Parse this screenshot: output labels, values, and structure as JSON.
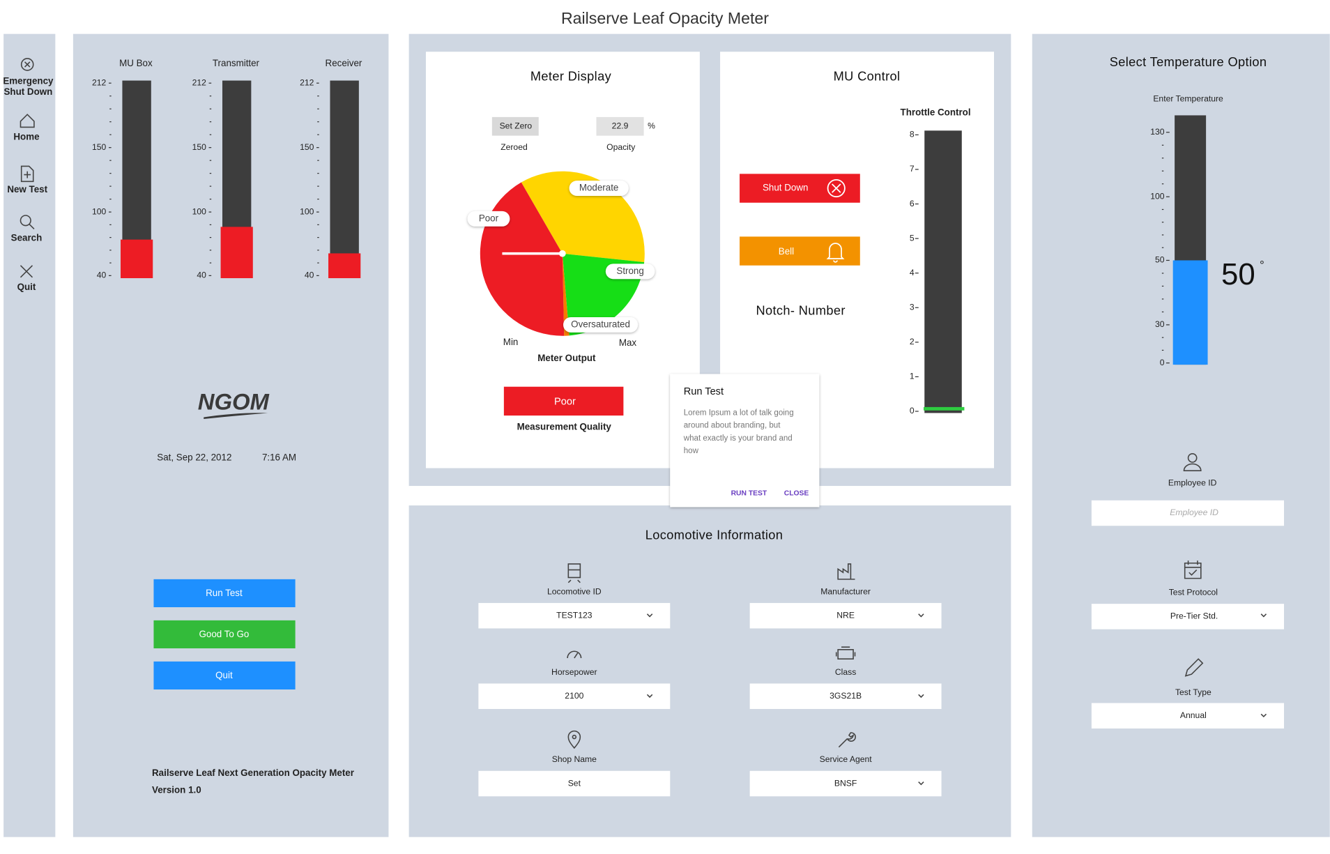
{
  "title": "Railserve Leaf Opacity Meter",
  "sidebar": [
    [
      "Emergency",
      "Shut Down"
    ],
    [
      "Home"
    ],
    [
      "New Test"
    ],
    [
      "Search"
    ],
    [
      "Quit"
    ]
  ],
  "gauges": {
    "yticks": [
      212,
      150,
      100,
      40
    ],
    "track_color": "#3d3d3d",
    "items": [
      {
        "name": "MU Box",
        "value": 74,
        "color": "#ed1c24"
      },
      {
        "name": "Transmitter",
        "value": 86,
        "color": "#ed1c24"
      },
      {
        "name": "Receiver",
        "value": 61,
        "color": "#ed1c24"
      }
    ]
  },
  "left": {
    "logo": "NGOM",
    "date": "Sat, Sep 22, 2012",
    "time": "7:16 AM",
    "buttons": [
      {
        "label": "Run Test",
        "color": "#1e90ff"
      },
      {
        "label": "Good To Go",
        "color": "#33bb3a"
      },
      {
        "label": "Quit",
        "color": "#1e90ff"
      }
    ],
    "footer": [
      "Railserve Leaf Next Generation Opacity Meter",
      "Version 1.0"
    ]
  },
  "meter_display": {
    "title": "Meter Display",
    "set_zero": "Set Zero",
    "zeroed": "Zeroed",
    "opacity": 22.9,
    "opacity_unit": "%",
    "opacity_label": "Opacity",
    "pie": {
      "type": "pie",
      "min_label": "Min",
      "max_label": "Max",
      "xlabel": "Meter Output",
      "slices": [
        {
          "name": "Moderate",
          "value": 35,
          "color": "#ffd500"
        },
        {
          "name": "Strong",
          "value": 22,
          "color": "#16de16"
        },
        {
          "name": "Oversaturated",
          "value": 1,
          "color": "#f57c00"
        },
        {
          "name": "Poor",
          "value": 42,
          "color": "#ed1c24"
        }
      ]
    },
    "quality": "Poor",
    "quality_label": "Measurement Quality"
  },
  "mu_control": {
    "title": "MU Control",
    "shut_down": "Shut Down",
    "bell": "Bell",
    "notch": "Notch- Number",
    "throttle": {
      "label": "Throttle Control",
      "ylim": [
        0,
        8
      ],
      "yticks": [
        0,
        1,
        2,
        3,
        4,
        5,
        6,
        7,
        8
      ],
      "value": 0,
      "color": "#2ecc40",
      "track_color": "#3d3d3d"
    }
  },
  "dialog": {
    "title": "Run Test",
    "body": [
      "Lorem Ipsum a lot of talk going",
      "around about branding, but",
      "what exactly is your brand and",
      "how"
    ],
    "actions": [
      "RUN TEST",
      "CLOSE"
    ]
  },
  "locomotive": {
    "title": "Locomotive Information",
    "fields": [
      {
        "label": "Locomotive ID",
        "value": "TEST123"
      },
      {
        "label": "Manufacturer",
        "value": "NRE"
      },
      {
        "label": "Horsepower",
        "value": "2100"
      },
      {
        "label": "Class",
        "value": "3GS21B"
      },
      {
        "label": "Shop Name",
        "value": "Set"
      },
      {
        "label": "Service Agent",
        "value": "BNSF"
      }
    ]
  },
  "temperature": {
    "title": "Select Temperature Option",
    "label": "Enter Temperature",
    "yticks": [
      130,
      100,
      50,
      30,
      0
    ],
    "value": 50,
    "unit": "°",
    "color": "#1e90ff",
    "track_color": "#3d3d3d"
  },
  "form": {
    "employee": {
      "label": "Employee ID",
      "placeholder": "Employee ID"
    },
    "protocol": {
      "label": "Test Protocol",
      "value": "Pre-Tier Std."
    },
    "test_type": {
      "label": "Test Type",
      "value": "Annual"
    }
  }
}
